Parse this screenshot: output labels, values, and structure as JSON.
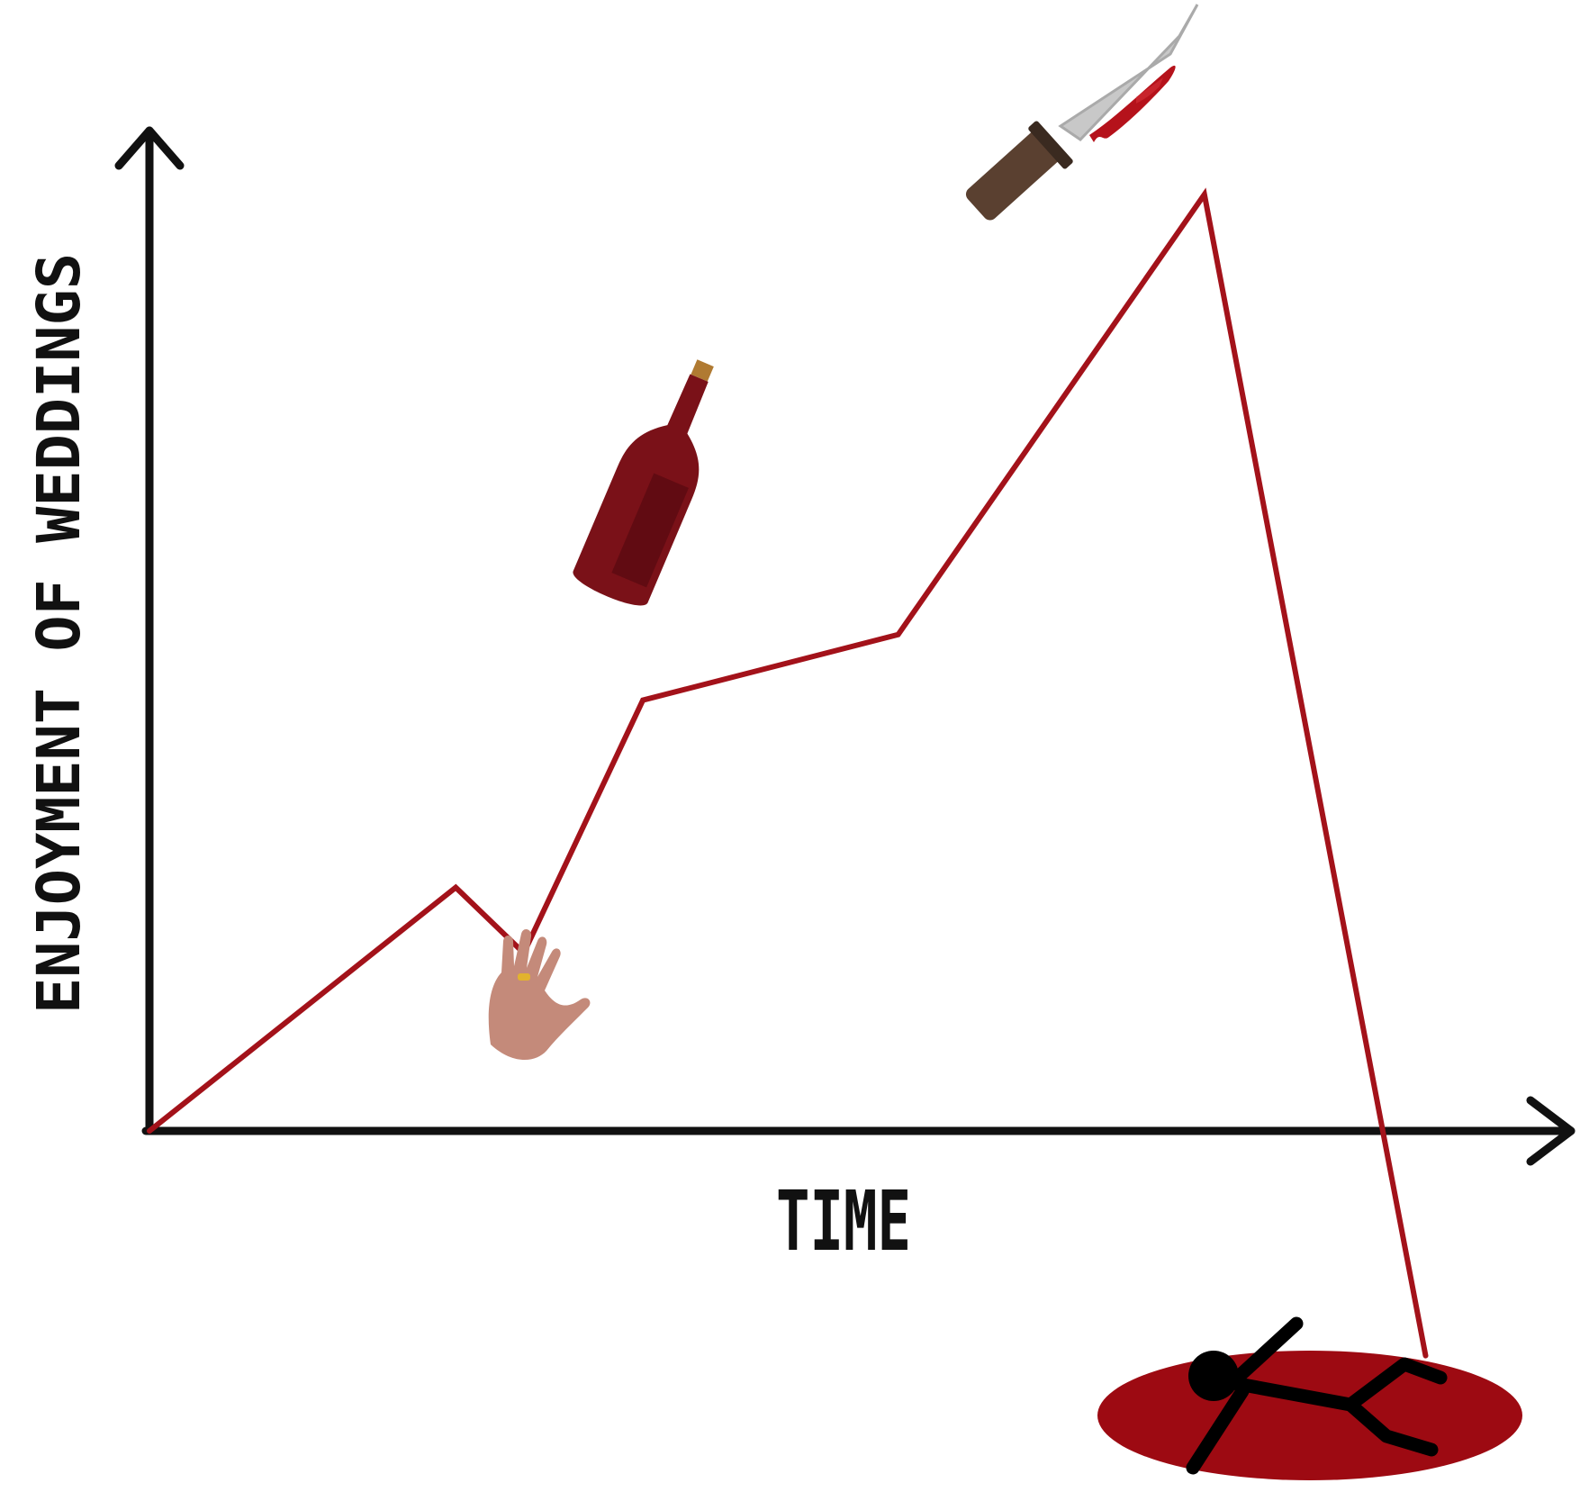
{
  "chart_data": {
    "type": "line",
    "title": "",
    "xlabel": "TIME",
    "ylabel": "ENJOYMENT OF WEDDINGS",
    "grid": false,
    "legend": "none",
    "x_ticks": "none",
    "y_ticks": "none",
    "series": [
      {
        "color": "#a3121a",
        "points": [
          {
            "x": 0.0,
            "y": 0.0
          },
          {
            "x": 0.18,
            "y": 0.26
          },
          {
            "x": 0.22,
            "y": 0.19
          },
          {
            "x": 0.29,
            "y": 0.46
          },
          {
            "x": 0.44,
            "y": 0.53
          },
          {
            "x": 0.62,
            "y": 1.0
          },
          {
            "x": 0.75,
            "y": -0.24
          }
        ]
      }
    ],
    "annotations": [
      {
        "icon": "ring-hand-icon",
        "x": 0.25,
        "y": 0.1
      },
      {
        "icon": "wine-bottle-icon",
        "x": 0.38,
        "y": 0.72
      },
      {
        "icon": "bloody-knife-icon",
        "x": 0.6,
        "y": 1.08
      },
      {
        "icon": "fallen-stick-figure-in-blood-pool-icon",
        "x": 0.78,
        "y": -0.3
      }
    ]
  },
  "colors": {
    "axis": "#111111",
    "line": "#a3121a",
    "blood": "#9d0a12",
    "wine": "#7a1118",
    "hand": "#c48a7a",
    "knife_blade": "#c8c8c8",
    "knife_handle": "#5a4030"
  }
}
